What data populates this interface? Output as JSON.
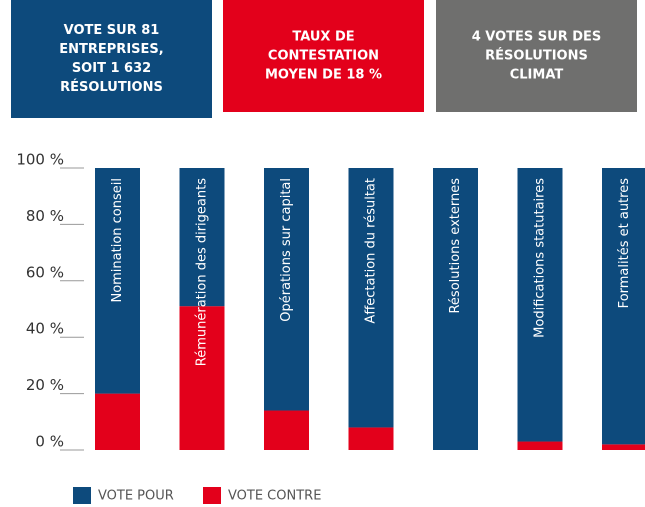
{
  "header": {
    "boxes": [
      {
        "lines": [
          "VOTE SUR 81",
          "ENTREPRISES,",
          "SOIT 1 632",
          "RÉSOLUTIONS"
        ],
        "color": "#0d4a7c"
      },
      {
        "lines": [
          "TAUX DE",
          "CONTESTATION",
          "MOYEN DE 18 %"
        ],
        "color": "#e3001b"
      },
      {
        "lines": [
          "4 VOTES SUR DES",
          "RÉSOLUTIONS",
          "CLIMAT"
        ],
        "color": "#6f6f6e"
      }
    ]
  },
  "chart_data": {
    "type": "stacked_bar",
    "categories": [
      "Nomination conseil",
      "Rémunération des dirigeants",
      "Opérations sur capital",
      "Affectation du résultat",
      "Résolutions externes",
      "Modifications statutaires",
      "Formalités et autres"
    ],
    "series": [
      {
        "name": "VOTE POUR",
        "color": "#0d4a7c",
        "values": [
          80,
          49,
          86,
          92,
          100,
          97,
          98
        ]
      },
      {
        "name": "VOTE CONTRE",
        "color": "#e3001b",
        "values": [
          20,
          51,
          14,
          8,
          0,
          3,
          2
        ]
      }
    ],
    "ylim": [
      0,
      100
    ],
    "yticks": [
      {
        "value": 0,
        "label": "0 %"
      },
      {
        "value": 20,
        "label": "20 %"
      },
      {
        "value": 40,
        "label": "40 %"
      },
      {
        "value": 60,
        "label": "60 %"
      },
      {
        "value": 80,
        "label": "80 %"
      },
      {
        "value": 100,
        "label": "100 %"
      }
    ]
  }
}
